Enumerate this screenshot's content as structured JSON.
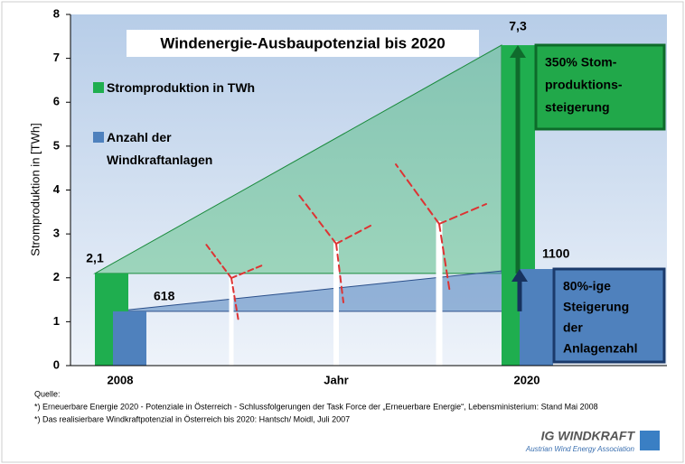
{
  "chart_data": {
    "type": "bar",
    "title": "Windenergie-Ausbaupotenzial bis 2020",
    "y_label": "Stromproduktion in [TWh]",
    "x_label": "Jahr",
    "categories": [
      "2008",
      "2020"
    ],
    "series": [
      {
        "name": "Stromproduktion in TWh",
        "color": "#1fae4f",
        "values": [
          2.1,
          7.3
        ],
        "value_labels": [
          "2,1",
          "7,3"
        ]
      },
      {
        "name": "Anzahl der Windkraftanlagen",
        "color": "#4f81bd",
        "values": [
          618,
          1100
        ],
        "axis": "y2"
      }
    ],
    "ylim": [
      0,
      8
    ],
    "yticks": [
      0,
      1,
      2,
      3,
      4,
      5,
      6,
      7,
      8
    ],
    "y2lim": [
      0,
      4000
    ],
    "grid": false,
    "annotations": [
      {
        "lines": [
          "350% Stom-",
          "produktions-",
          "steigerung"
        ],
        "color": "#21a84a"
      },
      {
        "lines": [
          "80%-ige",
          "Steigerung",
          "der",
          "Anlagenzahl"
        ],
        "color": "#4f81bd"
      }
    ],
    "source": [
      "Quelle:",
      "*) Erneuerbare Energie 2020 - Potenziale in Österreich - Schlussfolgerungen der Task Force der „Erneuerbare Energie“, Lebensministerium: Stand Mai 2008",
      "*) Das realisierbare Windkraftpotenzial in Österreich bis 2020: Hantsch/ Moidl, Juli 2007"
    ],
    "logo": {
      "name": "IG WINDKRAFT",
      "tagline": "Austrian Wind Energy Association"
    }
  }
}
